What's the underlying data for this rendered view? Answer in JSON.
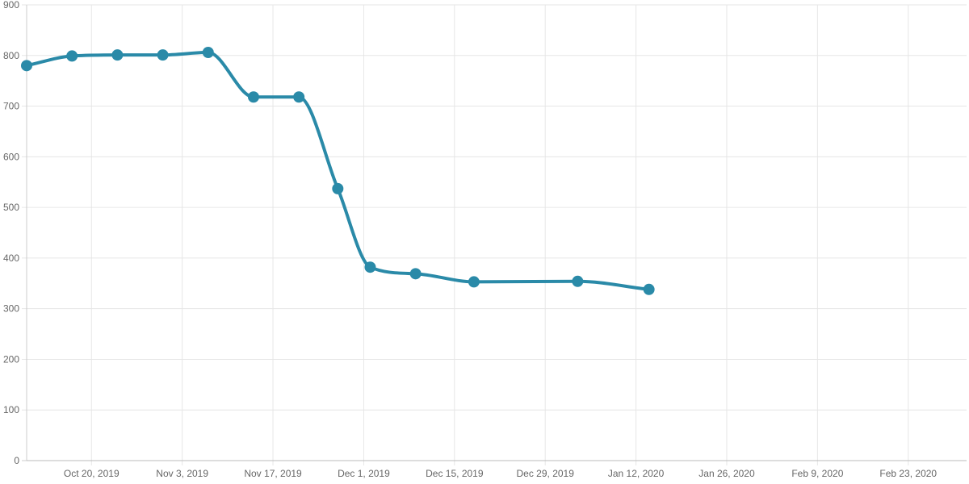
{
  "chart_data": {
    "type": "line",
    "title": "",
    "xlabel": "",
    "ylabel": "",
    "x_axis": {
      "type": "date",
      "range": [
        "2019-10-10",
        "2020-03-03"
      ],
      "ticks": [
        {
          "date": "2019-10-20",
          "label": "Oct 20, 2019"
        },
        {
          "date": "2019-11-03",
          "label": "Nov 3, 2019"
        },
        {
          "date": "2019-11-17",
          "label": "Nov 17, 2019"
        },
        {
          "date": "2019-12-01",
          "label": "Dec 1, 2019"
        },
        {
          "date": "2019-12-15",
          "label": "Dec 15, 2019"
        },
        {
          "date": "2019-12-29",
          "label": "Dec 29, 2019"
        },
        {
          "date": "2020-01-12",
          "label": "Jan 12, 2020"
        },
        {
          "date": "2020-01-26",
          "label": "Jan 26, 2020"
        },
        {
          "date": "2020-02-09",
          "label": "Feb 9, 2020"
        },
        {
          "date": "2020-02-23",
          "label": "Feb 23, 2020"
        }
      ]
    },
    "y_axis": {
      "range": [
        0,
        900
      ],
      "ticks": [
        0,
        100,
        200,
        300,
        400,
        500,
        600,
        700,
        800,
        900
      ]
    },
    "grid": true,
    "legend": "none",
    "series": [
      {
        "color": "#2a8aa8",
        "points": [
          {
            "x": "2019-10-10",
            "y": 780
          },
          {
            "x": "2019-10-17",
            "y": 799
          },
          {
            "x": "2019-10-24",
            "y": 801
          },
          {
            "x": "2019-10-31",
            "y": 801
          },
          {
            "x": "2019-11-07",
            "y": 806
          },
          {
            "x": "2019-11-14",
            "y": 718
          },
          {
            "x": "2019-11-21",
            "y": 718
          },
          {
            "x": "2019-11-27",
            "y": 537
          },
          {
            "x": "2019-12-02",
            "y": 382
          },
          {
            "x": "2019-12-09",
            "y": 369
          },
          {
            "x": "2019-12-18",
            "y": 353
          },
          {
            "x": "2020-01-03",
            "y": 354
          },
          {
            "x": "2020-01-14",
            "y": 338
          }
        ]
      }
    ]
  }
}
